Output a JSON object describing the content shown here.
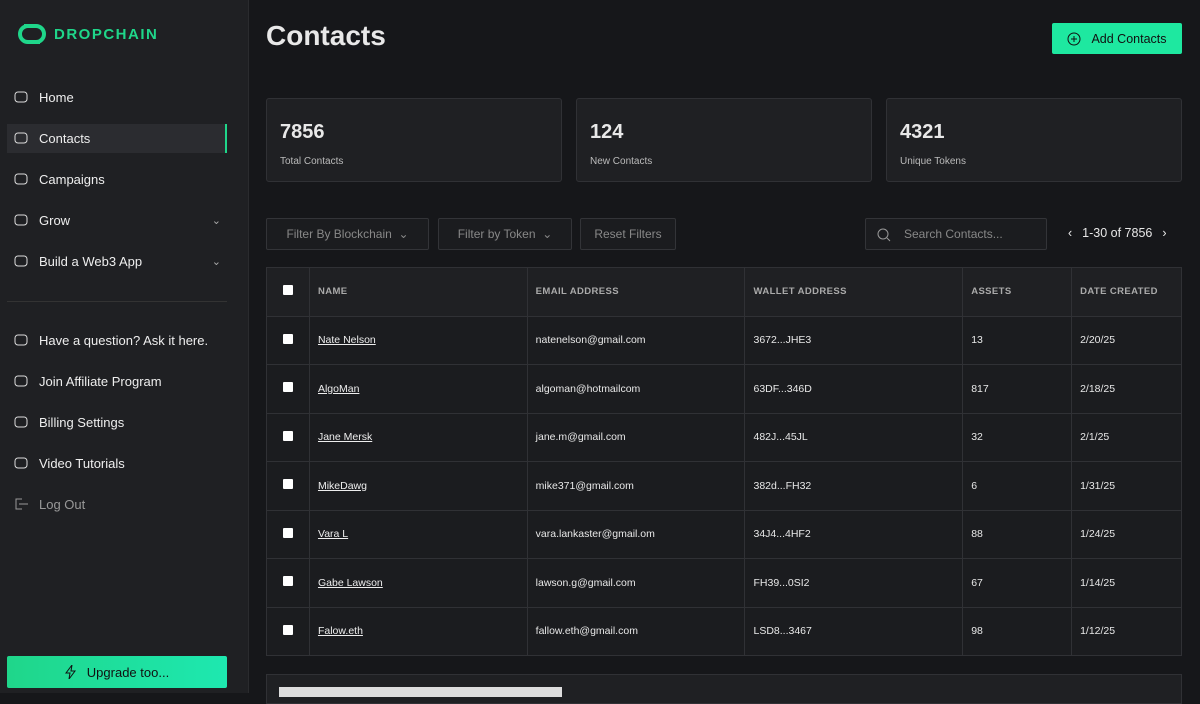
{
  "sidebar": {
    "brand": "DROPCHAIN",
    "nav": [
      "Home",
      "Contacts",
      "Campaigns",
      "Grow",
      "Build a Web3 App"
    ],
    "support": [
      "Have a question? Ask it here.",
      "Join Affiliate Program",
      "Billing Settings",
      "Video Tutorials"
    ],
    "logout": "Log Out",
    "upgrade": "Upgrade too..."
  },
  "header": {
    "title": "Contacts",
    "action": "Add Contacts"
  },
  "stats": [
    {
      "value": 7856,
      "label": "Total Contacts"
    },
    {
      "value": 124,
      "label": "New Contacts"
    },
    {
      "value": 4321,
      "label": "Unique Tokens"
    }
  ],
  "filters": {
    "blockchain": "Filter By Blockchain",
    "token": "Filter by Token",
    "reset": "Reset Filters",
    "search": "Search Contacts...",
    "pagination": "1-30 of 7856"
  },
  "table": {
    "headers": [
      "NAME",
      "EMAIL ADDRESS",
      "WALLET ADDRESS",
      "ASSETS",
      "DATE CREATED"
    ],
    "rows": [
      [
        "Nate Nelson",
        "natenelson@gmail.com",
        "3672...JHE3",
        13,
        "2/20/25"
      ],
      [
        "AlgoMan",
        "algoman@hotmailcom",
        "63DF...346D",
        817,
        "2/18/25"
      ],
      [
        "Jane Mersk",
        "jane.m@gmail.com",
        "482J...45JL",
        32,
        "2/1/25"
      ],
      [
        "MikeDawg",
        "mike371@gmail.com",
        "382d...FH32",
        6,
        "1/31/25"
      ],
      [
        "Vara L",
        "vara.lankaster@gmail.om",
        "34J4...4HF2",
        88,
        "1/24/25"
      ],
      [
        "Gabe Lawson",
        "lawson.g@gmail.com",
        "FH39...0SI2",
        67,
        "1/14/25"
      ],
      [
        "Falow.eth",
        "fallow.eth@gmail.com",
        "LSD8...3467",
        98,
        "1/12/25"
      ]
    ]
  }
}
